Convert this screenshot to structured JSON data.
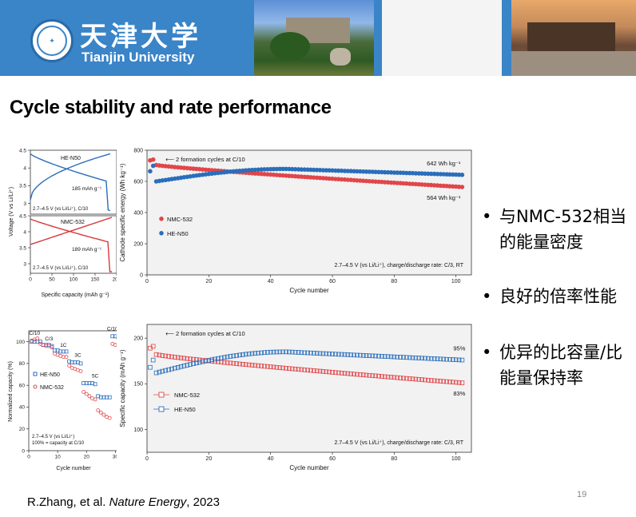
{
  "header": {
    "university_cn": "天津大学",
    "university_en": "Tianjin University",
    "logo_icon": "tianjin-university-seal"
  },
  "slide": {
    "title": "Cycle stability and rate performance",
    "bullets": [
      {
        "lines": [
          "与NMC-532相当",
          "的能量密度"
        ]
      },
      {
        "lines": [
          "良好的倍率性能"
        ]
      },
      {
        "lines": [
          "优异的比容量/比",
          "能量保持率"
        ]
      }
    ],
    "bullet_symbol": "•",
    "citation_prefix": "R.Zhang, et al. ",
    "citation_journal": "Nature Energy",
    "citation_suffix": ", 2023",
    "page_number": "19"
  },
  "chart_data": [
    {
      "id": "voltage-profile",
      "type": "line",
      "ylabel": "Voltage (V vs Li/Li⁺)",
      "xlabel": "Specific capacity (mAh g⁻¹)",
      "xlim": [
        0,
        200
      ],
      "xticks": [
        0,
        50,
        100,
        150,
        200
      ],
      "panels": [
        {
          "label": "HE-N50",
          "capacity_label": "185 mAh g⁻¹",
          "condition": "2.7–4.5 V (vs Li/Li⁺), C/10",
          "color": "#2a6ebb",
          "ylim": [
            2.7,
            4.5
          ],
          "yticks": [
            3.0,
            3.5,
            4.0,
            4.5
          ],
          "capacity": 185
        },
        {
          "label": "NMC-532",
          "capacity_label": "189 mAh g⁻¹",
          "condition": "2.7–4.5 V (vs Li/Li⁺), C/10",
          "color": "#d9383a",
          "ylim": [
            2.7,
            4.5
          ],
          "yticks": [
            3.0,
            3.5,
            4.0,
            4.5
          ],
          "capacity": 189
        }
      ]
    },
    {
      "id": "energy-cycling",
      "type": "scatter",
      "ylabel": "Cathode specific energy (Wh kg⁻¹)",
      "xlabel": "Cycle number",
      "xlim": [
        0,
        105
      ],
      "ylim": [
        0,
        800
      ],
      "xticks": [
        0,
        20,
        40,
        60,
        80,
        100
      ],
      "yticks": [
        0,
        200,
        400,
        600,
        800
      ],
      "annotation": "2 formation cycles at C/10",
      "condition": "2.7–4.5 V (vs Li/Li⁺), charge/discharge rate: C/3, RT",
      "series": [
        {
          "name": "NMC-532",
          "color": "#e0464a",
          "formation": [
            735,
            740
          ],
          "start": 705,
          "end": 564,
          "end_label": "564 Wh kg⁻¹"
        },
        {
          "name": "HE-N50",
          "color": "#2a6ebb",
          "formation": [
            665,
            700
          ],
          "start": 600,
          "peak": 680,
          "peak_cycle": 45,
          "end": 642,
          "end_label": "642 Wh kg⁻¹"
        }
      ]
    },
    {
      "id": "rate-performance",
      "type": "scatter",
      "ylabel": "Normalized capacity (%)",
      "xlabel": "Cycle number",
      "xlim": [
        0,
        31
      ],
      "ylim": [
        0,
        110
      ],
      "xticks": [
        0,
        10,
        20,
        30
      ],
      "yticks": [
        0,
        20,
        40,
        60,
        80,
        100
      ],
      "rate_labels": [
        "C/10",
        "C/3",
        "1C",
        "3C",
        "5C",
        "C/10"
      ],
      "condition_lines": [
        "2.7–4.5 V (vs Li/Li⁺)",
        "100% = capacity at C/10"
      ],
      "series": [
        {
          "name": "HE-N50",
          "color": "#2a6ebb",
          "values": [
            100,
            100,
            100,
            100,
            97,
            97,
            97,
            96,
            92,
            92,
            91,
            91,
            91,
            82,
            81,
            81,
            81,
            80,
            62,
            62,
            62,
            62,
            61,
            50,
            49,
            49,
            49,
            49,
            105,
            105,
            104
          ]
        },
        {
          "name": "NMC-532",
          "color": "#e0464a",
          "values": [
            101,
            102,
            103,
            98,
            97,
            96,
            96,
            95,
            89,
            88,
            87,
            86,
            86,
            78,
            76,
            75,
            74,
            73,
            54,
            52,
            50,
            48,
            47,
            37,
            35,
            33,
            31,
            30,
            98,
            97,
            97
          ]
        }
      ]
    },
    {
      "id": "capacity-cycling",
      "type": "scatter",
      "ylabel": "Specific capacity (mAh g⁻¹)",
      "xlabel": "Cycle number",
      "xlim": [
        0,
        105
      ],
      "ylim": [
        75,
        215
      ],
      "xticks": [
        0,
        20,
        40,
        60,
        80,
        100
      ],
      "yticks": [
        100,
        150,
        200
      ],
      "annotation": "2 formation cycles at C/10",
      "condition": "2.7–4.5 V (vs Li/Li⁺), charge/discharge rate: C/3, RT",
      "series": [
        {
          "name": "NMC-532",
          "color": "#e0464a",
          "formation": [
            189,
            191
          ],
          "start": 182,
          "end": 151,
          "end_label": "83%"
        },
        {
          "name": "HE-N50",
          "color": "#2a6ebb",
          "formation": [
            168,
            176
          ],
          "start": 162,
          "peak": 185,
          "peak_cycle": 45,
          "end": 176,
          "end_label": "95%"
        }
      ]
    }
  ]
}
